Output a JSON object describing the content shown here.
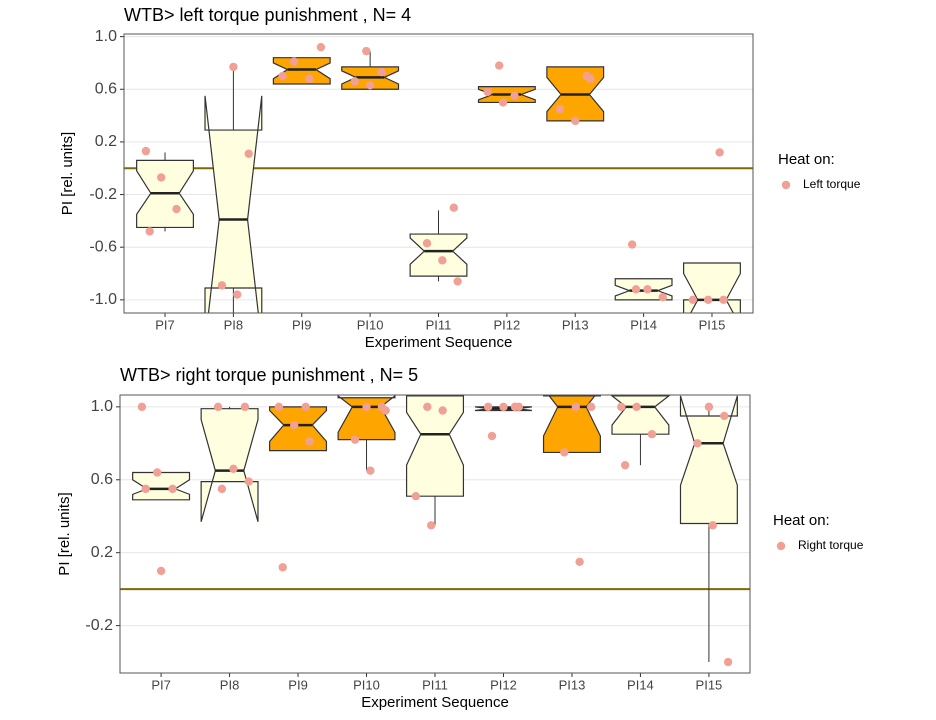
{
  "chart_data": [
    {
      "type": "box",
      "title": "WTB> left torque punishment , N= 4",
      "x_label": "Experiment Sequence",
      "y_label": "PI [rel. units]",
      "categories": [
        "PI7",
        "PI8",
        "PI9",
        "PI10",
        "PI11",
        "PI12",
        "PI13",
        "PI14",
        "PI15"
      ],
      "q1": [
        -0.45,
        -0.91,
        0.64,
        0.6,
        -0.82,
        0.5,
        0.36,
        -1.0,
        -1.0
      ],
      "median": [
        -0.19,
        -0.39,
        0.75,
        0.69,
        -0.63,
        0.56,
        0.56,
        -0.93,
        -1.0
      ],
      "q3": [
        0.06,
        0.29,
        0.84,
        0.77,
        -0.5,
        0.62,
        0.77,
        -0.84,
        -0.72
      ],
      "lower": [
        -0.48,
        -1.2,
        0.64,
        0.6,
        -0.86,
        0.5,
        0.36,
        -1.0,
        -1.0
      ],
      "upper": [
        0.12,
        0.77,
        0.84,
        0.89,
        -0.32,
        0.62,
        0.77,
        -0.84,
        -0.72
      ],
      "notch_low": [
        -0.35,
        -1.33,
        0.68,
        0.64,
        -0.73,
        0.52,
        0.43,
        -0.97,
        -1.2
      ],
      "notch_high": [
        -0.02,
        0.55,
        0.8,
        0.74,
        -0.53,
        0.6,
        0.69,
        -0.89,
        -0.8
      ],
      "fill": [
        "#ffffe0",
        "#ffffe0",
        "#ffa500",
        "#ffa500",
        "#ffffe0",
        "#ffa500",
        "#ffa500",
        "#ffffe0",
        "#ffffe0"
      ],
      "points": [
        {
          "category": "PI7",
          "value": 0.13
        },
        {
          "category": "PI7",
          "value": -0.07
        },
        {
          "category": "PI7",
          "value": -0.31
        },
        {
          "category": "PI7",
          "value": -0.48
        },
        {
          "category": "PI8",
          "value": 0.77
        },
        {
          "category": "PI8",
          "value": 0.11
        },
        {
          "category": "PI8",
          "value": -0.89
        },
        {
          "category": "PI8",
          "value": -0.96
        },
        {
          "category": "PI9",
          "value": 0.92
        },
        {
          "category": "PI9",
          "value": 0.81
        },
        {
          "category": "PI9",
          "value": 0.68
        },
        {
          "category": "PI9",
          "value": 0.7
        },
        {
          "category": "PI10",
          "value": 0.89
        },
        {
          "category": "PI10",
          "value": 0.73
        },
        {
          "category": "PI10",
          "value": 0.66
        },
        {
          "category": "PI10",
          "value": 0.63
        },
        {
          "category": "PI11",
          "value": -0.3
        },
        {
          "category": "PI11",
          "value": -0.57
        },
        {
          "category": "PI11",
          "value": -0.7
        },
        {
          "category": "PI11",
          "value": -0.86
        },
        {
          "category": "PI12",
          "value": 0.78
        },
        {
          "category": "PI12",
          "value": 0.55
        },
        {
          "category": "PI12",
          "value": 0.58
        },
        {
          "category": "PI12",
          "value": 0.5
        },
        {
          "category": "PI13",
          "value": 0.7
        },
        {
          "category": "PI13",
          "value": 0.45
        },
        {
          "category": "PI13",
          "value": 0.36
        },
        {
          "category": "PI13",
          "value": 0.68
        },
        {
          "category": "PI14",
          "value": -0.58
        },
        {
          "category": "PI14",
          "value": -0.92
        },
        {
          "category": "PI14",
          "value": -0.98
        },
        {
          "category": "PI14",
          "value": -0.92
        },
        {
          "category": "PI15",
          "value": 0.12
        },
        {
          "category": "PI15",
          "value": -1.0
        },
        {
          "category": "PI15",
          "value": -1.0
        },
        {
          "category": "PI15",
          "value": -1.0
        }
      ],
      "point_color": "#f1a095",
      "legend_title": "Heat on:",
      "points_name": "Left torque",
      "hline": 0,
      "hline_color": "#806a00",
      "ylim": [
        -1.1,
        1.02
      ],
      "yticks": [
        {
          "value": -1,
          "label": "-1.0"
        },
        -0.6,
        -0.2,
        0.2,
        0.6,
        {
          "value": 1,
          "label": "1.0"
        }
      ],
      "grid": true
    },
    {
      "type": "box",
      "title": "WTB> right torque punishment , N= 5",
      "x_label": "Experiment Sequence",
      "y_label": "PI [rel. units]",
      "categories": [
        "PI7",
        "PI8",
        "PI9",
        "PI10",
        "PI11",
        "PI12",
        "PI13",
        "PI14",
        "PI15"
      ],
      "q1": [
        0.49,
        0.59,
        0.76,
        0.82,
        0.51,
        0.98,
        0.75,
        0.85,
        0.36
      ],
      "median": [
        0.55,
        0.65,
        0.9,
        1.0,
        0.85,
        0.99,
        1.0,
        1.0,
        0.8
      ],
      "q3": [
        0.64,
        0.99,
        1.0,
        1.05,
        1.06,
        1.0,
        1.06,
        1.06,
        0.95
      ],
      "lower": [
        0.49,
        0.59,
        0.76,
        0.65,
        0.35,
        0.98,
        0.75,
        0.68,
        -0.4
      ],
      "upper": [
        0.64,
        1.0,
        1.0,
        1.05,
        1.06,
        1.0,
        1.06,
        1.06,
        1.0
      ],
      "notch_low": [
        0.52,
        0.37,
        0.81,
        0.86,
        0.68,
        0.98,
        0.84,
        0.9,
        0.57
      ],
      "notch_high": [
        0.6,
        0.93,
        0.98,
        1.06,
        0.97,
        1.0,
        1.1,
        1.06,
        1.06
      ],
      "fill": [
        "#ffffe0",
        "#ffffe0",
        "#ffa500",
        "#ffa500",
        "#ffffe0",
        "#ffa500",
        "#ffa500",
        "#ffffe0",
        "#ffffe0"
      ],
      "points": [
        {
          "category": "PI7",
          "value": 1.0
        },
        {
          "category": "PI7",
          "value": 0.64
        },
        {
          "category": "PI7",
          "value": 0.55
        },
        {
          "category": "PI7",
          "value": 0.55
        },
        {
          "category": "PI7",
          "value": 0.1
        },
        {
          "category": "PI8",
          "value": 1.0
        },
        {
          "category": "PI8",
          "value": 1.0
        },
        {
          "category": "PI8",
          "value": 0.66
        },
        {
          "category": "PI8",
          "value": 0.59
        },
        {
          "category": "PI8",
          "value": 0.55
        },
        {
          "category": "PI9",
          "value": 1.0
        },
        {
          "category": "PI9",
          "value": 1.0
        },
        {
          "category": "PI9",
          "value": 0.9
        },
        {
          "category": "PI9",
          "value": 0.81
        },
        {
          "category": "PI9",
          "value": 0.12
        },
        {
          "category": "PI10",
          "value": 1.0
        },
        {
          "category": "PI10",
          "value": 1.0
        },
        {
          "category": "PI10",
          "value": 0.82
        },
        {
          "category": "PI10",
          "value": 0.65
        },
        {
          "category": "PI10",
          "value": 0.98
        },
        {
          "category": "PI11",
          "value": 1.0
        },
        {
          "category": "PI11",
          "value": 0.98
        },
        {
          "category": "PI11",
          "value": 0.51
        },
        {
          "category": "PI11",
          "value": 0.35
        },
        {
          "category": "PI12",
          "value": 1.0
        },
        {
          "category": "PI12",
          "value": 1.0
        },
        {
          "category": "PI12",
          "value": 1.0
        },
        {
          "category": "PI12",
          "value": 1.0
        },
        {
          "category": "PI12",
          "value": 0.84
        },
        {
          "category": "PI13",
          "value": 1.0
        },
        {
          "category": "PI13",
          "value": 1.0
        },
        {
          "category": "PI13",
          "value": 0.75
        },
        {
          "category": "PI13",
          "value": 0.15
        },
        {
          "category": "PI14",
          "value": 1.0
        },
        {
          "category": "PI14",
          "value": 1.0
        },
        {
          "category": "PI14",
          "value": 0.85
        },
        {
          "category": "PI14",
          "value": 0.68
        },
        {
          "category": "PI15",
          "value": 1.0
        },
        {
          "category": "PI15",
          "value": 0.95
        },
        {
          "category": "PI15",
          "value": 0.8
        },
        {
          "category": "PI15",
          "value": 0.35
        },
        {
          "category": "PI15",
          "value": -0.4
        }
      ],
      "point_color": "#f1a095",
      "legend_title": "Heat on:",
      "points_name": "Right torque",
      "hline": 0,
      "hline_color": "#806a00",
      "ylim": [
        -0.46,
        1.065
      ],
      "yticks": [
        -0.2,
        0.2,
        0.6,
        {
          "value": 1,
          "label": "1.0"
        }
      ],
      "grid": true
    }
  ]
}
